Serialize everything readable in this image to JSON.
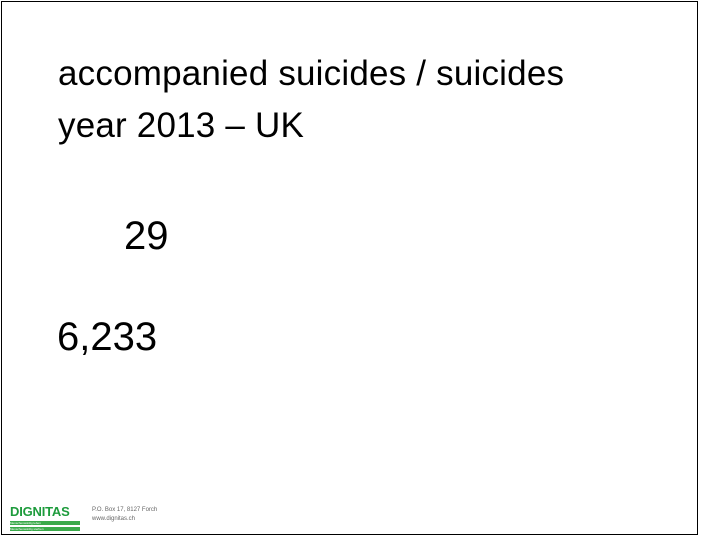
{
  "slide": {
    "title_lines": [
      "accompanied suicides / suicides",
      "year 2013 – UK"
    ],
    "values": [
      "29",
      "6,233"
    ]
  },
  "footer": {
    "logo_text": "DIGNITAS",
    "logo_tagline_1": "Menschenwürdig leben",
    "logo_tagline_2": "Menschenwürdig sterben",
    "address_line_1": "P.O. Box 17, 8127 Forch",
    "address_line_2": "www.dignitas.ch",
    "brand_color": "#1d9b3c"
  }
}
